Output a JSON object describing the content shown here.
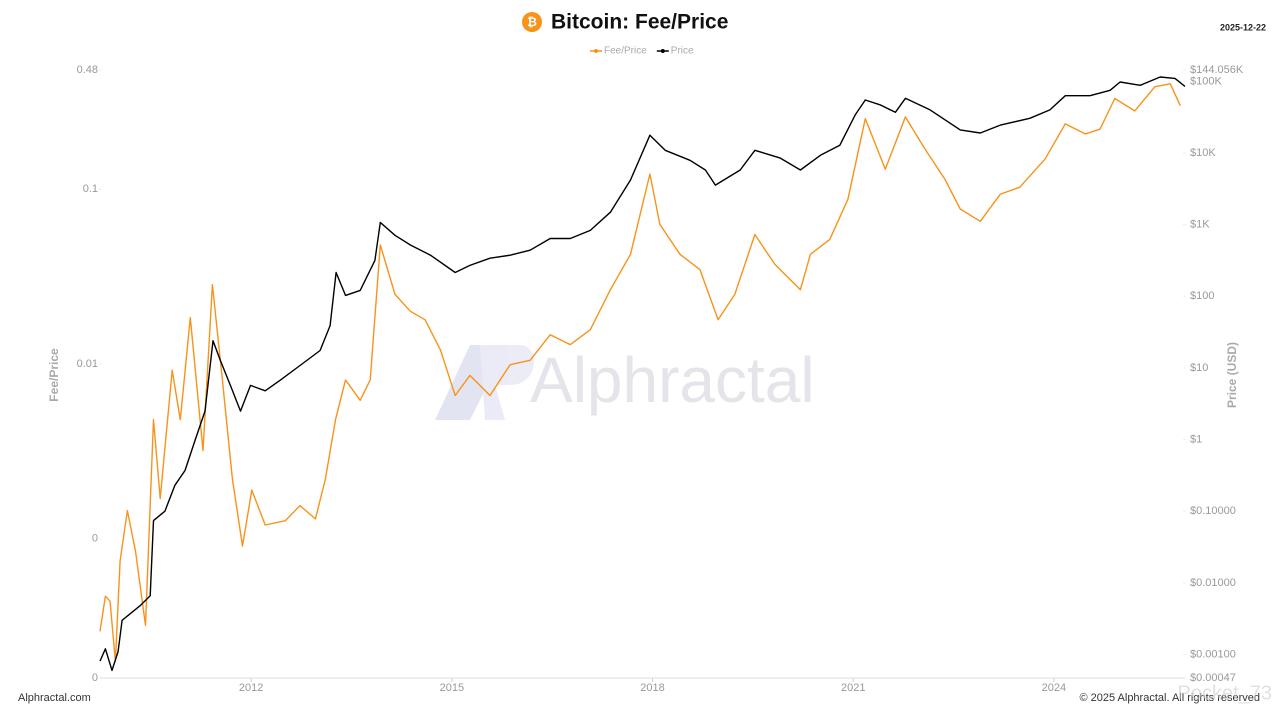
{
  "chart_data": {
    "type": "line",
    "title": "Bitcoin: Fee/Price",
    "date": "2025-12-22",
    "watermark": "Alphractal",
    "footer_left": "Alphractal.com",
    "footer_right": "© 2025 Alphractal. All rights reserved",
    "overlay": "Pocket_73",
    "y_label": "Fee/Price",
    "y2_label": "Price (USD)",
    "ylog": true,
    "y2log": true,
    "grid": false,
    "legend": "top",
    "xlim": [
      2009.74,
      2025.96
    ],
    "xticks": [
      2012,
      2015,
      2018,
      2021,
      2024
    ],
    "ylim": [
      0.00016,
      0.48
    ],
    "yticks": [
      {
        "value": 0.00016,
        "label": "0"
      },
      {
        "value": 0.001,
        "label": "0"
      },
      0.01,
      0.1,
      0.48
    ],
    "y2lim": [
      0.00047,
      144056
    ],
    "y2ticks": [
      {
        "value": 0.00047,
        "label": "$0.00047"
      },
      {
        "value": 0.001,
        "label": "$0.00100"
      },
      {
        "value": 0.01,
        "label": "$0.01000"
      },
      {
        "value": 0.1,
        "label": "$0.10000"
      },
      {
        "value": 1,
        "label": "$1"
      },
      {
        "value": 10,
        "label": "$10"
      },
      {
        "value": 100,
        "label": "$100"
      },
      {
        "value": 1000,
        "label": "$1K"
      },
      {
        "value": 10000,
        "label": "$10K"
      },
      {
        "value": 100000,
        "label": "$100K"
      },
      {
        "value": 144056,
        "label": "$144.056K"
      }
    ],
    "series": [
      {
        "name": "Fee/Price",
        "color": "#f7931a",
        "axis": "y",
        "x": [
          2009.74,
          2009.82,
          2009.89,
          2009.97,
          2010.04,
          2010.15,
          2010.27,
          2010.42,
          2010.54,
          2010.64,
          2010.82,
          2010.94,
          2011.09,
          2011.28,
          2011.42,
          2011.57,
          2011.72,
          2011.87,
          2012.01,
          2012.21,
          2012.51,
          2012.73,
          2012.96,
          2013.11,
          2013.26,
          2013.41,
          2013.63,
          2013.78,
          2013.93,
          2014.15,
          2014.38,
          2014.6,
          2014.83,
          2015.05,
          2015.27,
          2015.57,
          2015.87,
          2016.17,
          2016.47,
          2016.77,
          2017.07,
          2017.37,
          2017.67,
          2017.96,
          2018.11,
          2018.41,
          2018.71,
          2018.98,
          2019.23,
          2019.53,
          2019.83,
          2020.21,
          2020.36,
          2020.65,
          2020.92,
          2021.18,
          2021.48,
          2021.78,
          2022.07,
          2022.37,
          2022.6,
          2022.9,
          2023.2,
          2023.49,
          2023.87,
          2024.17,
          2024.47,
          2024.69,
          2024.91,
          2025.21,
          2025.51,
          2025.74,
          2025.89
        ],
        "values": [
          0.000296,
          0.00047,
          0.00044,
          0.0002,
          0.00075,
          0.00145,
          0.00085,
          0.00032,
          0.0048,
          0.0017,
          0.0092,
          0.0048,
          0.0184,
          0.0032,
          0.0284,
          0.0081,
          0.0022,
          0.00091,
          0.0019,
          0.0012,
          0.00127,
          0.00155,
          0.0013,
          0.0022,
          0.0048,
          0.0081,
          0.0062,
          0.0081,
          0.048,
          0.025,
          0.02,
          0.0179,
          0.012,
          0.0066,
          0.0086,
          0.0066,
          0.0099,
          0.0105,
          0.0147,
          0.0129,
          0.0157,
          0.0266,
          0.0424,
          0.122,
          0.0628,
          0.0424,
          0.0346,
          0.0179,
          0.025,
          0.055,
          0.0371,
          0.0266,
          0.0424,
          0.0516,
          0.0875,
          0.253,
          0.13,
          0.259,
          0.17,
          0.114,
          0.077,
          0.0655,
          0.0936,
          0.1025,
          0.149,
          0.236,
          0.207,
          0.22,
          0.33,
          0.28,
          0.385,
          0.4,
          0.3
        ]
      },
      {
        "name": "Price",
        "color": "#000000",
        "axis": "y2",
        "x": [
          2009.74,
          2009.82,
          2009.92,
          2010.01,
          2010.07,
          2010.34,
          2010.49,
          2010.54,
          2010.71,
          2010.86,
          2011.01,
          2011.16,
          2011.31,
          2011.43,
          2011.54,
          2011.69,
          2011.84,
          2011.99,
          2012.21,
          2012.43,
          2012.73,
          2013.03,
          2013.18,
          2013.27,
          2013.41,
          2013.63,
          2013.85,
          2013.93,
          2014.15,
          2014.38,
          2014.68,
          2015.05,
          2015.27,
          2015.57,
          2015.87,
          2016.17,
          2016.47,
          2016.77,
          2017.07,
          2017.37,
          2017.67,
          2017.96,
          2018.19,
          2018.56,
          2018.79,
          2018.94,
          2019.31,
          2019.53,
          2019.91,
          2020.21,
          2020.51,
          2020.8,
          2021.03,
          2021.18,
          2021.4,
          2021.63,
          2021.78,
          2022.15,
          2022.6,
          2022.9,
          2023.2,
          2023.64,
          2023.94,
          2024.17,
          2024.54,
          2024.84,
          2024.99,
          2025.29,
          2025.59,
          2025.81,
          2025.96
        ],
        "values": [
          0.00081,
          0.0012,
          0.0006,
          0.0011,
          0.003,
          0.0048,
          0.0066,
          0.074,
          0.1,
          0.23,
          0.37,
          0.97,
          2.5,
          24,
          12.7,
          5.7,
          2.5,
          5.7,
          4.8,
          6.7,
          10.8,
          17.5,
          39,
          215,
          103,
          121,
          317,
          1070,
          710,
          520,
          375,
          215,
          270,
          340,
          375,
          440,
          640,
          640,
          830,
          1490,
          4200,
          17700,
          10900,
          7900,
          5800,
          3560,
          5800,
          10900,
          8500,
          5800,
          9300,
          12800,
          34000,
          55000,
          47000,
          37000,
          58000,
          40000,
          21000,
          19000,
          24500,
          30500,
          40000,
          63000,
          63000,
          75000,
          98000,
          88000,
          115000,
          110000,
          85000
        ]
      }
    ]
  }
}
